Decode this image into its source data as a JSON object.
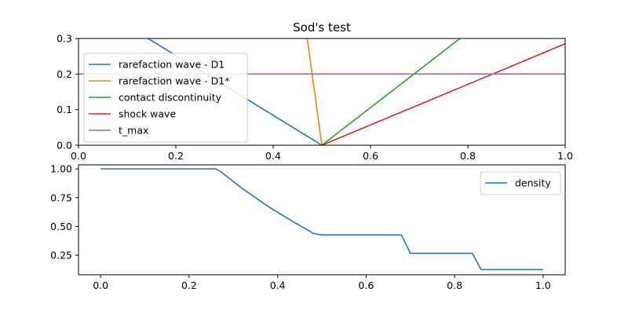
{
  "chart_data": [
    {
      "type": "line",
      "title": "Sod's test",
      "xlabel": "",
      "ylabel": "",
      "xlim": [
        0.0,
        1.0
      ],
      "ylim": [
        0.0,
        0.3
      ],
      "xticks": [
        0.0,
        0.2,
        0.4,
        0.6,
        0.8,
        1.0
      ],
      "xtick_labels": [
        "0.0",
        "0.2",
        "0.4",
        "0.6",
        "0.8",
        "1.0"
      ],
      "yticks": [
        0.0,
        0.1,
        0.2,
        0.3
      ],
      "ytick_labels": [
        "0.0",
        "0.1",
        "0.2",
        "0.3"
      ],
      "grid": false,
      "legend_position": "center-left",
      "series": [
        {
          "name": "rarefaction wave - D1",
          "color": "#1f77b4",
          "x": [
            0.5,
            0.0
          ],
          "y": [
            0.0,
            0.42
          ]
        },
        {
          "name": "rarefaction wave - D1*",
          "color": "#ff7f0e",
          "x": [
            0.5,
            0.46
          ],
          "y": [
            0.0,
            0.4
          ]
        },
        {
          "name": "contact discontinuity",
          "color": "#2ca02c",
          "x": [
            0.5,
            0.85
          ],
          "y": [
            0.0,
            0.37
          ]
        },
        {
          "name": "shock wave",
          "color": "#d62728",
          "x": [
            0.5,
            1.0
          ],
          "y": [
            0.0,
            0.285
          ]
        },
        {
          "name": "t_max",
          "color": "#9467bd",
          "x": [
            0.0,
            1.0
          ],
          "y": [
            0.2,
            0.2
          ]
        }
      ]
    },
    {
      "type": "line",
      "title": "",
      "xlabel": "",
      "ylabel": "",
      "xlim": [
        -0.05,
        1.05
      ],
      "ylim": [
        0.08,
        1.035
      ],
      "xticks": [
        0.0,
        0.2,
        0.4,
        0.6,
        0.8,
        1.0
      ],
      "xtick_labels": [
        "0.0",
        "0.2",
        "0.4",
        "0.6",
        "0.8",
        "1.0"
      ],
      "yticks": [
        0.25,
        0.5,
        0.75,
        1.0
      ],
      "ytick_labels": [
        "0.25",
        "0.50",
        "0.75",
        "1.00"
      ],
      "grid": false,
      "legend_position": "top-right",
      "series": [
        {
          "name": "density",
          "color": "#1f77b4",
          "x": [
            0.0,
            0.26,
            0.27,
            0.29,
            0.32,
            0.35,
            0.38,
            0.41,
            0.44,
            0.47,
            0.48,
            0.5,
            0.68,
            0.7,
            0.84,
            0.86,
            1.0
          ],
          "y": [
            1.0,
            1.0,
            0.98,
            0.92,
            0.83,
            0.75,
            0.67,
            0.6,
            0.53,
            0.465,
            0.44,
            0.426,
            0.426,
            0.266,
            0.266,
            0.125,
            0.125
          ]
        }
      ]
    }
  ]
}
